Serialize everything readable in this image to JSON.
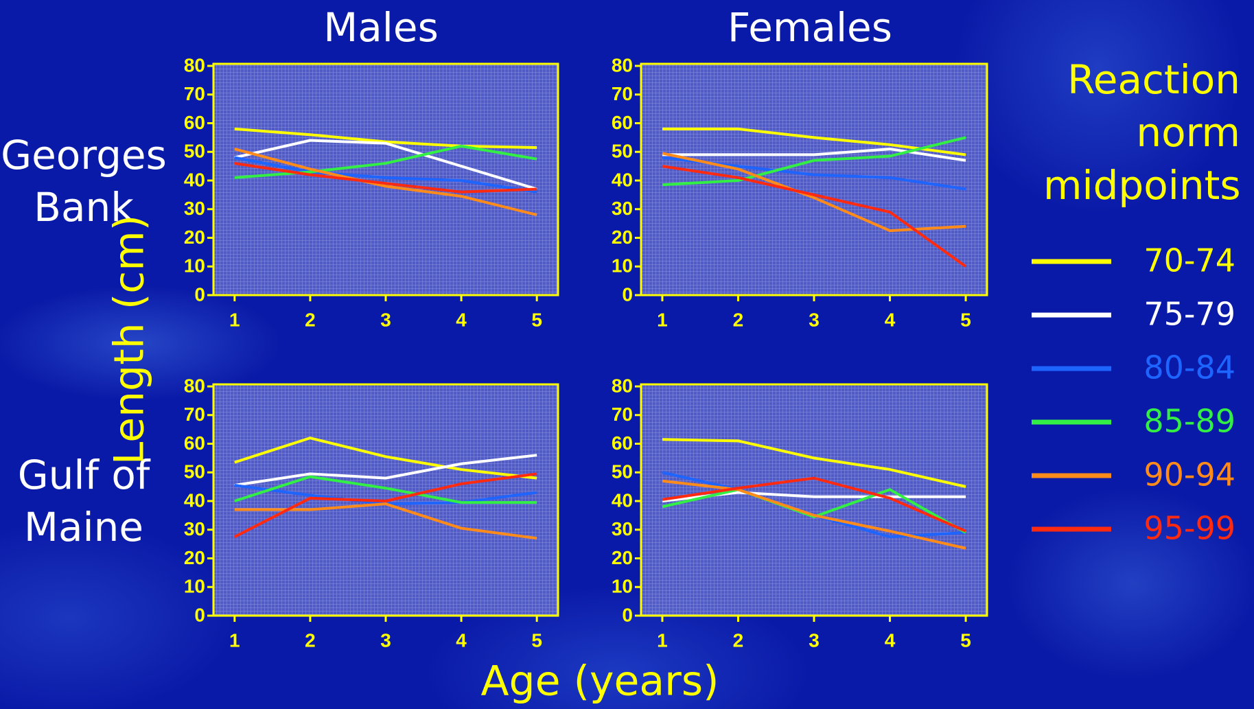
{
  "column_titles": [
    "Males",
    "Females"
  ],
  "row_titles": [
    "Georges Bank",
    "Gulf of Maine"
  ],
  "y_label": "Length (cm)",
  "x_label": "Age (years)",
  "legend": {
    "title": "Reaction norm midpoints"
  },
  "chart_data": [
    {
      "type": "line",
      "x": [
        1,
        2,
        3,
        4,
        5
      ],
      "xlim": [
        0.72,
        5.28
      ],
      "xticks": [
        1,
        2,
        3,
        4,
        5
      ],
      "ylim": [
        0,
        80
      ],
      "yticks": [
        0,
        10,
        20,
        30,
        40,
        50,
        60,
        70,
        80
      ],
      "series": [
        {
          "name": "70-74",
          "color": "#ffff00",
          "values": [
            58,
            56,
            53.5,
            52,
            51.5
          ]
        },
        {
          "name": "75-79",
          "color": "#ffffff",
          "values": [
            48,
            54,
            53,
            45,
            37
          ]
        },
        {
          "name": "80-84",
          "color": "#1e64ff",
          "values": [
            48,
            43,
            41,
            40,
            36
          ]
        },
        {
          "name": "85-89",
          "color": "#33ee44",
          "values": [
            41,
            43,
            46,
            52,
            47.5
          ]
        },
        {
          "name": "90-94",
          "color": "#ff8c1a",
          "values": [
            51,
            44,
            38,
            34.5,
            28
          ]
        },
        {
          "name": "95-99",
          "color": "#ff2a10",
          "values": [
            46,
            42,
            39,
            36,
            37
          ]
        }
      ]
    },
    {
      "type": "line",
      "x": [
        1,
        2,
        3,
        4,
        5
      ],
      "xlim": [
        0.72,
        5.28
      ],
      "xticks": [
        1,
        2,
        3,
        4,
        5
      ],
      "ylim": [
        0,
        80
      ],
      "yticks": [
        0,
        10,
        20,
        30,
        40,
        50,
        60,
        70,
        80
      ],
      "series": [
        {
          "color": "#ffff00",
          "values": [
            58,
            58,
            55,
            52.5,
            49
          ]
        },
        {
          "color": "#ffffff",
          "values": [
            49,
            49,
            49,
            51,
            47
          ]
        },
        {
          "color": "#1e64ff",
          "values": [
            48,
            45,
            42,
            41,
            37
          ]
        },
        {
          "color": "#33ee44",
          "values": [
            38.5,
            40,
            47,
            48.5,
            55
          ]
        },
        {
          "color": "#ff8c1a",
          "values": [
            49.5,
            44,
            34,
            22.5,
            24
          ]
        },
        {
          "color": "#ff2a10",
          "values": [
            45,
            41,
            35,
            29,
            10
          ]
        }
      ]
    },
    {
      "type": "line",
      "x": [
        1,
        2,
        3,
        4,
        5
      ],
      "xlim": [
        0.72,
        5.28
      ],
      "xticks": [
        1,
        2,
        3,
        4,
        5
      ],
      "ylim": [
        0,
        80
      ],
      "yticks": [
        0,
        10,
        20,
        30,
        40,
        50,
        60,
        70,
        80
      ],
      "series": [
        {
          "color": "#ffff00",
          "values": [
            53.5,
            62,
            55.5,
            51,
            48
          ]
        },
        {
          "color": "#ffffff",
          "values": [
            45.5,
            49.5,
            48,
            53,
            56
          ]
        },
        {
          "color": "#1e64ff",
          "values": [
            45.5,
            42,
            39,
            39.5,
            43
          ]
        },
        {
          "color": "#33ee44",
          "values": [
            40,
            48.5,
            44.5,
            39.5,
            39.5
          ]
        },
        {
          "color": "#ff8c1a",
          "values": [
            37,
            37,
            39,
            30.5,
            27
          ]
        },
        {
          "color": "#ff2a10",
          "values": [
            27.5,
            41,
            40,
            46,
            49.5
          ]
        }
      ]
    },
    {
      "type": "line",
      "x": [
        1,
        2,
        3,
        4,
        5
      ],
      "xlim": [
        0.72,
        5.28
      ],
      "xticks": [
        1,
        2,
        3,
        4,
        5
      ],
      "ylim": [
        0,
        80
      ],
      "yticks": [
        0,
        10,
        20,
        30,
        40,
        50,
        60,
        70,
        80
      ],
      "series": [
        {
          "color": "#ffff00",
          "values": [
            61.5,
            61,
            55,
            51,
            45
          ]
        },
        {
          "color": "#ffffff",
          "values": [
            40,
            43,
            41.5,
            41.5,
            41.5
          ]
        },
        {
          "color": "#1e64ff",
          "values": [
            50,
            44,
            35,
            27.5,
            29
          ]
        },
        {
          "color": "#33ee44",
          "values": [
            38,
            44,
            34.5,
            44,
            29
          ]
        },
        {
          "color": "#ff8c1a",
          "values": [
            47,
            44,
            35,
            29.5,
            23.5
          ]
        },
        {
          "color": "#ff2a10",
          "values": [
            40.5,
            44.5,
            48,
            41,
            29.5
          ]
        }
      ]
    }
  ]
}
